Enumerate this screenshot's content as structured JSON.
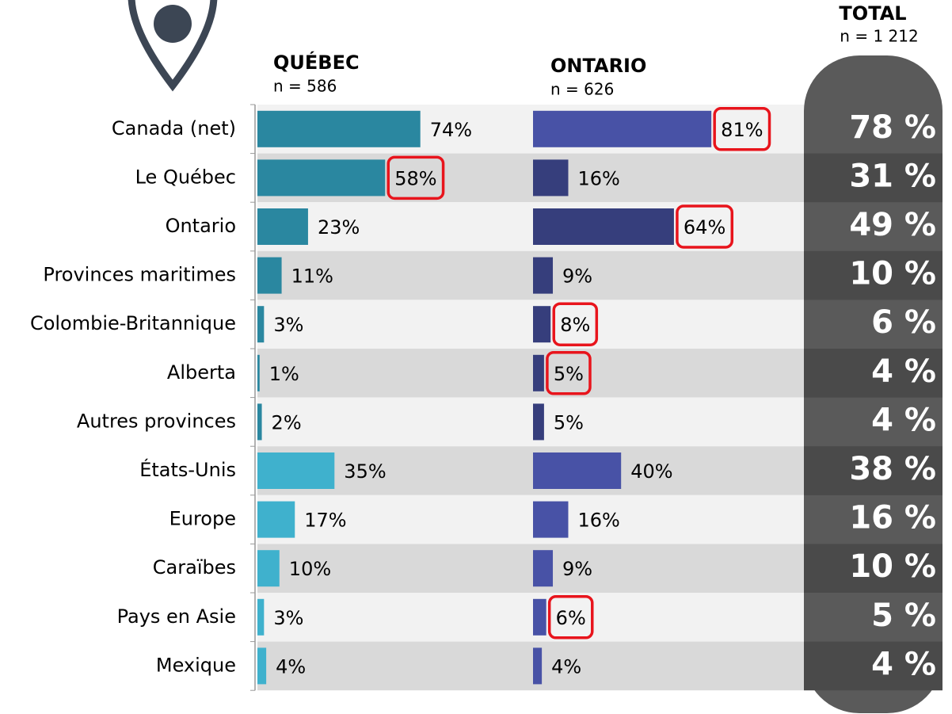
{
  "chart_data": {
    "type": "bar",
    "orientation": "horizontal",
    "categories": [
      "Canada (net)",
      "Le Québec",
      "Ontario",
      "Provinces maritimes",
      "Colombie-Britannique",
      "Alberta",
      "Autres provinces",
      "États-Unis",
      "Europe",
      "Caraïbes",
      "Pays en Asie",
      "Mexique"
    ],
    "xlim": [
      0,
      100
    ],
    "series": [
      {
        "name": "QUÉBEC",
        "subtitle": "n = 586",
        "values": [
          74,
          58,
          23,
          11,
          3,
          1,
          2,
          35,
          17,
          10,
          3,
          4
        ],
        "value_labels": [
          "74%",
          "58%",
          "23%",
          "11%",
          "3%",
          "1%",
          "2%",
          "35%",
          "17%",
          "10%",
          "3%",
          "4%"
        ],
        "colors": [
          "#2a87a0",
          "#2a87a0",
          "#2a87a0",
          "#2a87a0",
          "#2a87a0",
          "#2a87a0",
          "#2a87a0",
          "#3fb1cd",
          "#3fb1cd",
          "#3fb1cd",
          "#3fb1cd",
          "#3fb1cd"
        ],
        "highlight": [
          1
        ]
      },
      {
        "name": "ONTARIO",
        "subtitle": "n = 626",
        "values": [
          81,
          16,
          64,
          9,
          8,
          5,
          5,
          40,
          16,
          9,
          6,
          4
        ],
        "value_labels": [
          "81%",
          "16%",
          "64%",
          "9%",
          "8%",
          "5%",
          "5%",
          "40%",
          "16%",
          "9%",
          "6%",
          "4%"
        ],
        "colors": [
          "#4852a6",
          "#363e7c",
          "#363e7c",
          "#363e7c",
          "#363e7c",
          "#363e7c",
          "#363e7c",
          "#4852a6",
          "#4852a6",
          "#4852a6",
          "#4852a6",
          "#4852a6"
        ],
        "highlight": [
          0,
          2,
          4,
          5,
          10
        ]
      }
    ],
    "total": {
      "name": "TOTAL",
      "subtitle": "n = 1 212",
      "values": [
        78,
        31,
        49,
        10,
        6,
        4,
        4,
        38,
        16,
        10,
        5,
        4
      ],
      "value_labels": [
        "78 %",
        "31 %",
        "49 %",
        "10 %",
        "6 %",
        "4 %",
        "4 %",
        "38 %",
        "16 %",
        "10 %",
        "5 %",
        "4 %"
      ]
    }
  }
}
